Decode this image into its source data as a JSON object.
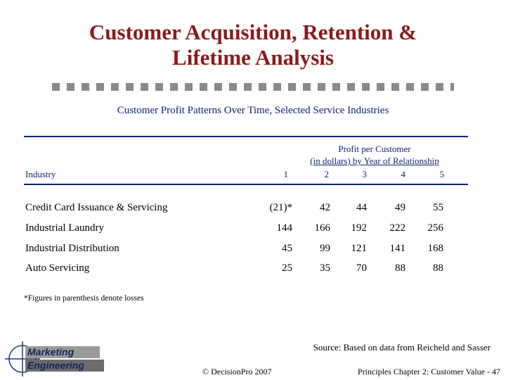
{
  "title": {
    "line1": "Customer Acquisition, Retention &",
    "line2": "Lifetime Analysis"
  },
  "subtitle": "Customer Profit Patterns Over Time, Selected Service Industries",
  "table": {
    "header": {
      "industry_label": "Industry",
      "group_line1": "Profit per Customer",
      "group_line2": "(in dollars) by Year of Relationship",
      "years": [
        "1",
        "2",
        "3",
        "4",
        "5"
      ]
    },
    "rows": [
      {
        "industry": "Credit Card Issuance & Servicing",
        "values": [
          "(21)*",
          "42",
          "44",
          "49",
          "55"
        ]
      },
      {
        "industry": "Industrial Laundry",
        "values": [
          "144",
          "166",
          "192",
          "222",
          "256"
        ]
      },
      {
        "industry": "Industrial Distribution",
        "values": [
          "45",
          "99",
          "121",
          "141",
          "168"
        ]
      },
      {
        "industry": "Auto Servicing",
        "values": [
          "25",
          "35",
          "70",
          "88",
          "88"
        ]
      }
    ]
  },
  "footnote": "*Figures in parenthesis denote losses",
  "source": "Source: Based on data from Reicheld and Sasser",
  "logo": {
    "line1": "Marketing",
    "line2": "Engineering"
  },
  "footer": {
    "copyright_symbol": "©",
    "copyright": "DecisionPro 2007",
    "chapter": "Principles Chapter 2: Customer Value - 47"
  },
  "colors": {
    "title": "#8b1a1a",
    "accent": "#0a2470",
    "divider": "#8a8a8a"
  }
}
